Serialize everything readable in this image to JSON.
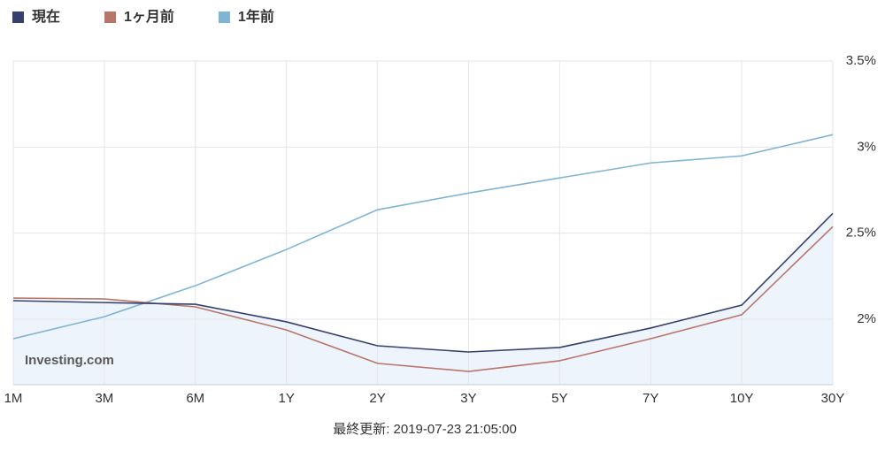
{
  "chart_data": {
    "type": "line",
    "categories": [
      "1M",
      "3M",
      "6M",
      "1Y",
      "2Y",
      "3Y",
      "5Y",
      "7Y",
      "10Y",
      "30Y"
    ],
    "series": [
      {
        "name": "現在",
        "color": "#36406e",
        "values": [
          2.108,
          2.097,
          2.087,
          1.985,
          1.846,
          1.81,
          1.836,
          1.949,
          2.082,
          2.615
        ]
      },
      {
        "name": "1ヶ月前",
        "color": "#b8766a",
        "values": [
          2.123,
          2.118,
          2.072,
          1.938,
          1.744,
          1.697,
          1.759,
          1.887,
          2.026,
          2.538
        ]
      },
      {
        "name": "1年前",
        "color": "#7fb4d5",
        "values": [
          1.887,
          2.015,
          2.195,
          2.405,
          2.636,
          2.733,
          2.821,
          2.908,
          2.949,
          3.072
        ]
      }
    ],
    "area_series": 0,
    "area_color": "#eef4fc",
    "ylim": [
      1.62,
      3.5
    ],
    "yticks": [
      {
        "value": 2,
        "label": "2%"
      },
      {
        "value": 2.5,
        "label": "2.5%"
      },
      {
        "value": 3,
        "label": "3%"
      },
      {
        "value": 3.5,
        "label": "3.5%"
      }
    ],
    "grid": true,
    "legend": "top-left",
    "watermark": "Investing.com",
    "footer": "最終更新: 2019-07-23 21:05:00"
  }
}
